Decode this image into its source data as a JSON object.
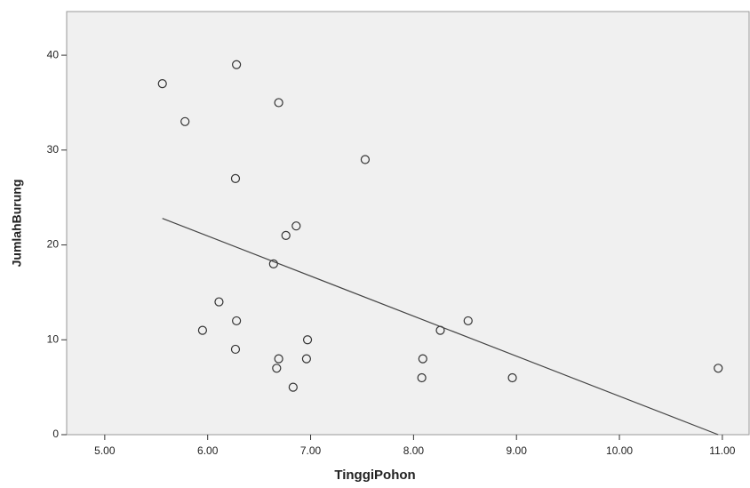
{
  "chart_data": {
    "type": "scatter",
    "x_label": "TinggiPohon",
    "y_label": "JumlahBurung",
    "series": [
      {
        "color": "#333333",
        "x": [
          5.56,
          5.78,
          6.28,
          6.69,
          6.27,
          7.53,
          6.86,
          6.76,
          6.64,
          6.11,
          6.28,
          5.95,
          6.27,
          6.69,
          6.67,
          6.83,
          6.96,
          6.97,
          8.09,
          8.08,
          8.26,
          8.53,
          8.96,
          10.96
        ],
        "values": [
          37,
          33,
          39,
          35,
          27,
          29,
          22,
          21,
          18,
          14,
          12,
          11,
          9,
          8,
          7,
          5,
          8,
          10,
          8,
          6,
          11,
          12,
          6,
          7
        ]
      }
    ],
    "fit_line": {
      "color": "#444444",
      "x": [
        5.56,
        10.96
      ],
      "values": [
        22.8,
        0
      ]
    },
    "xlim": [
      4.63,
      11.26
    ],
    "ylim": [
      0,
      44.6
    ],
    "xticks": [
      {
        "value": 5,
        "label": "5.00"
      },
      {
        "value": 6,
        "label": "6.00"
      },
      {
        "value": 7,
        "label": "7.00"
      },
      {
        "value": 8,
        "label": "8.00"
      },
      {
        "value": 9,
        "label": "9.00"
      },
      {
        "value": 10,
        "label": "10.00"
      },
      {
        "value": 11,
        "label": "11.00"
      }
    ],
    "yticks": [
      0,
      10,
      20,
      30,
      40
    ]
  }
}
